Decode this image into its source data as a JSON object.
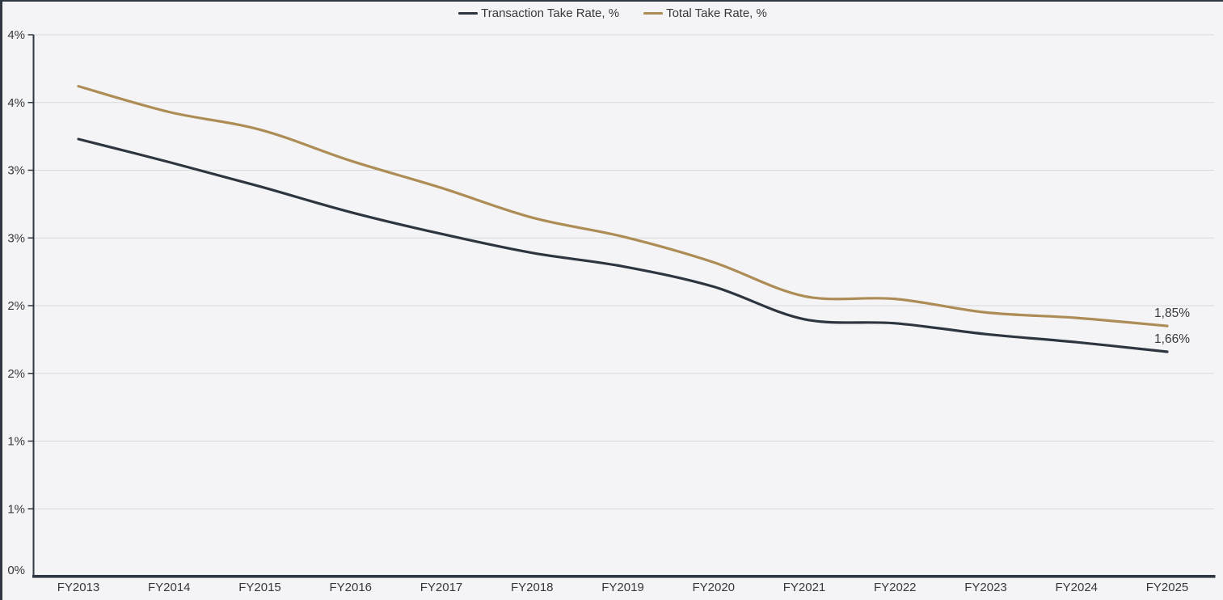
{
  "page": {
    "background": "#f4f4f6",
    "border_color": "#2e3742"
  },
  "legend": {
    "items": [
      {
        "label": "Transaction Take Rate, %",
        "color": "#2d3640"
      },
      {
        "label": "Total Take Rate, %",
        "color": "#ad8c55"
      }
    ]
  },
  "chart_data": {
    "type": "line",
    "categories": [
      "FY2013",
      "FY2014",
      "FY2015",
      "FY2016",
      "FY2017",
      "FY2018",
      "FY2019",
      "FY2020",
      "FY2021",
      "FY2022",
      "FY2023",
      "FY2024",
      "FY2025"
    ],
    "series": [
      {
        "name": "Transaction Take Rate, %",
        "color": "#2d3640",
        "values": [
          3.23,
          3.06,
          2.88,
          2.69,
          2.53,
          2.39,
          2.29,
          2.14,
          1.9,
          1.87,
          1.79,
          1.73,
          1.66
        ],
        "end_label": "1,66%"
      },
      {
        "name": "Total Take Rate, %",
        "color": "#ad8c55",
        "values": [
          3.62,
          3.43,
          3.3,
          3.07,
          2.87,
          2.65,
          2.51,
          2.32,
          2.07,
          2.05,
          1.95,
          1.91,
          1.85
        ],
        "end_label": "1,85%"
      }
    ],
    "xlabel": "",
    "ylabel": "",
    "ylim": [
      0,
      4
    ],
    "ytick_step": 0.5,
    "ytick_labels_bottom_to_top": [
      "0%",
      "1%",
      "1%",
      "2%",
      "2%",
      "3%",
      "3%",
      "4%",
      "4%"
    ],
    "grid": true,
    "legend_position": "top-center"
  },
  "colors": {
    "gridline": "#d8d9db",
    "axis": "#2e3742",
    "text": "#36393d"
  }
}
